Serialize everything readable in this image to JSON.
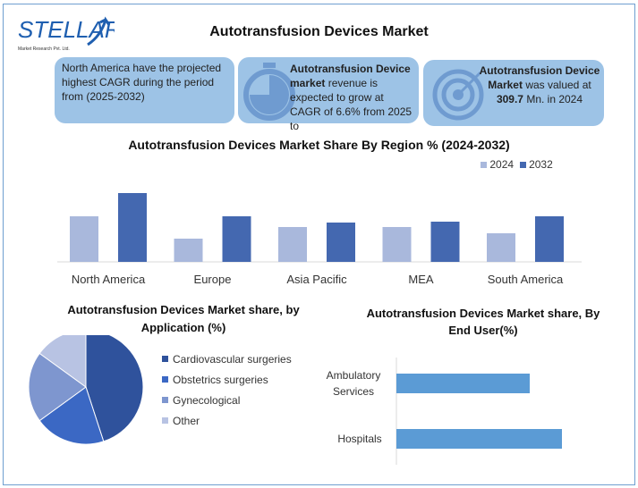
{
  "logo": {
    "text": "STELLAR",
    "subtitle": "Market Research Pvt. Ltd."
  },
  "title": "Autotransfusion Devices Market",
  "cards": [
    {
      "text": "North America have the projected highest CAGR during the period from (2025-2032)",
      "icon": "none"
    },
    {
      "bold": "Autotransfusion Device market",
      "text": " revenue is expected to grow at CAGR of 6.6% from 2025 to",
      "icon": "stopwatch-icon"
    },
    {
      "bold": "Autotransfusion Device Market",
      "text": " was valued at ",
      "value": "309.7",
      "tail": " Mn. in 2024",
      "icon": "target-icon"
    }
  ],
  "chart_data": [
    {
      "type": "bar",
      "title": "Autotransfusion Devices Market Share By Region % (2024-2032)",
      "categories": [
        "North America",
        "Europe",
        "Asia Pacific",
        "MEA",
        "South America"
      ],
      "series": [
        {
          "name": "2024",
          "values": [
            51,
            26,
            39,
            39,
            32
          ],
          "color": "#a9b8dc"
        },
        {
          "name": "2032",
          "values": [
            77,
            51,
            44,
            45,
            51
          ],
          "color": "#4468b0"
        }
      ],
      "legend": "top-right",
      "grid": false
    },
    {
      "type": "pie",
      "title": "Autotransfusion Devices  Market share, by Application  (%)",
      "categories": [
        "Cardiovascular surgeries",
        "Obstetrics surgeries",
        "Gynecological",
        "Other"
      ],
      "values": [
        45,
        20,
        20,
        15
      ],
      "colors": [
        "#2f529c",
        "#3b68c4",
        "#7e96cf",
        "#b8c3e3"
      ],
      "legend": "right"
    },
    {
      "type": "bar",
      "orientation": "horizontal",
      "title": "Autotransfusion Devices Market share, By End User(%)",
      "categories": [
        "Ambulatory Services",
        "Hospitals"
      ],
      "values": [
        149,
        185
      ],
      "color": "#5b9bd5"
    }
  ]
}
